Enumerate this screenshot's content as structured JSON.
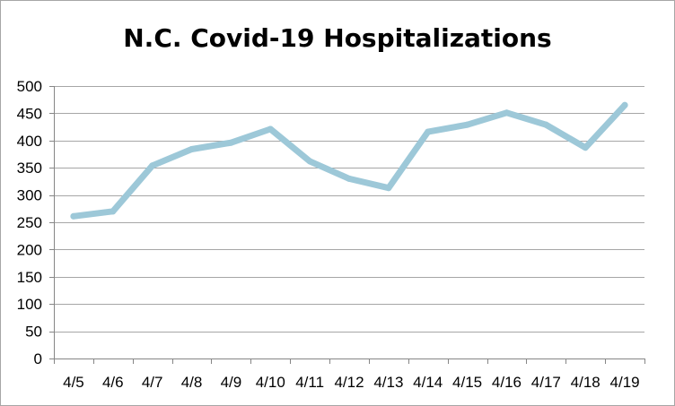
{
  "chart_data": {
    "type": "line",
    "title": "N.C. Covid-19 Hospitalizations",
    "xlabel": "",
    "ylabel": "",
    "categories": [
      "4/5",
      "4/6",
      "4/7",
      "4/8",
      "4/9",
      "4/10",
      "4/11",
      "4/12",
      "4/13",
      "4/14",
      "4/15",
      "4/16",
      "4/17",
      "4/18",
      "4/19"
    ],
    "series": [
      {
        "values": [
          261,
          270,
          354,
          384,
          396,
          421,
          362,
          330,
          313,
          416,
          429,
          451,
          429,
          387,
          465
        ],
        "color": "#9dc8d8"
      }
    ],
    "ylim": [
      0,
      500
    ],
    "yticks": [
      0,
      50,
      100,
      150,
      200,
      250,
      300,
      350,
      400,
      450,
      500
    ],
    "grid": true,
    "legend": "none"
  }
}
